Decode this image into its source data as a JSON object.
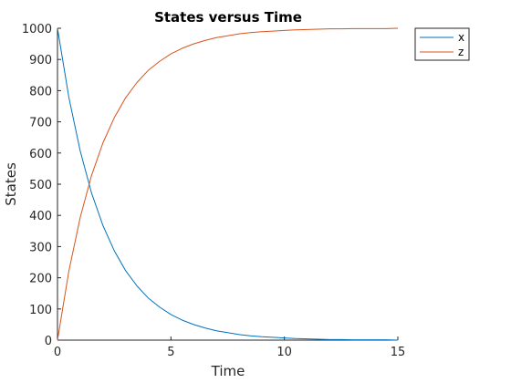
{
  "chart_data": {
    "type": "line",
    "title": "States versus Time",
    "xlabel": "Time",
    "ylabel": "States",
    "xlim": [
      0,
      15
    ],
    "ylim": [
      0,
      1000
    ],
    "xticks": [
      0,
      5,
      10,
      15
    ],
    "yticks": [
      0,
      100,
      200,
      300,
      400,
      500,
      600,
      700,
      800,
      900,
      1000
    ],
    "grid": false,
    "legend_position": "outside-top-right",
    "x": [
      0,
      0.5,
      1,
      1.5,
      2,
      2.5,
      3,
      3.5,
      4,
      4.5,
      5,
      5.5,
      6,
      6.5,
      7,
      7.5,
      8,
      8.5,
      9,
      9.5,
      10,
      10.5,
      11,
      11.5,
      12,
      12.5,
      13,
      13.5,
      14,
      14.5,
      15
    ],
    "series": [
      {
        "name": "x",
        "color": "#0072bd",
        "values": [
          1000,
          779,
          607,
          472,
          368,
          287,
          223,
          174,
          135,
          106,
          82,
          64,
          50,
          39,
          30,
          24,
          18,
          14,
          11,
          9,
          7,
          5,
          4,
          3,
          2,
          2,
          1,
          1,
          1,
          1,
          0
        ]
      },
      {
        "name": "z",
        "color": "#d95319",
        "values": [
          0,
          221,
          393,
          528,
          632,
          713,
          777,
          826,
          865,
          894,
          918,
          936,
          950,
          961,
          970,
          976,
          982,
          986,
          989,
          991,
          993,
          995,
          996,
          997,
          998,
          998,
          999,
          999,
          999,
          999,
          1000
        ]
      }
    ]
  }
}
